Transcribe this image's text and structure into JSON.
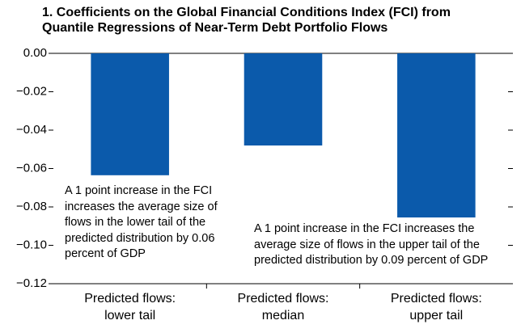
{
  "chart_data": {
    "type": "bar",
    "title": "1. Coefficients on the Global Financial Conditions Index (FCI) from Quantile Regressions of Near-Term Debt Portfolio Flows",
    "categories": [
      "Predicted flows: lower tail",
      "Predicted flows: median",
      "Predicted flows: upper tail"
    ],
    "values": [
      -0.0635,
      -0.048,
      -0.0855
    ],
    "color": "#0b5aab",
    "ylim": [
      -0.12,
      0
    ],
    "yticks": [
      {
        "value": 0,
        "label": "0.00"
      },
      {
        "value": -0.02,
        "label": "−0.02"
      },
      {
        "value": -0.04,
        "label": "−0.04"
      },
      {
        "value": -0.06,
        "label": "−0.06"
      },
      {
        "value": -0.08,
        "label": "−0.08"
      },
      {
        "value": -0.1,
        "label": "−0.10"
      },
      {
        "value": -0.12,
        "label": "−0.12"
      }
    ],
    "annotations": [
      "A 1 point increase in the FCI increases the average size of flows in the lower tail of the predicted distribution by 0.06 percent of GDP",
      "A 1 point increase in the FCI increases the average size of flows in the upper tail of the predicted distribution by 0.09 percent of GDP"
    ],
    "grid": false
  }
}
